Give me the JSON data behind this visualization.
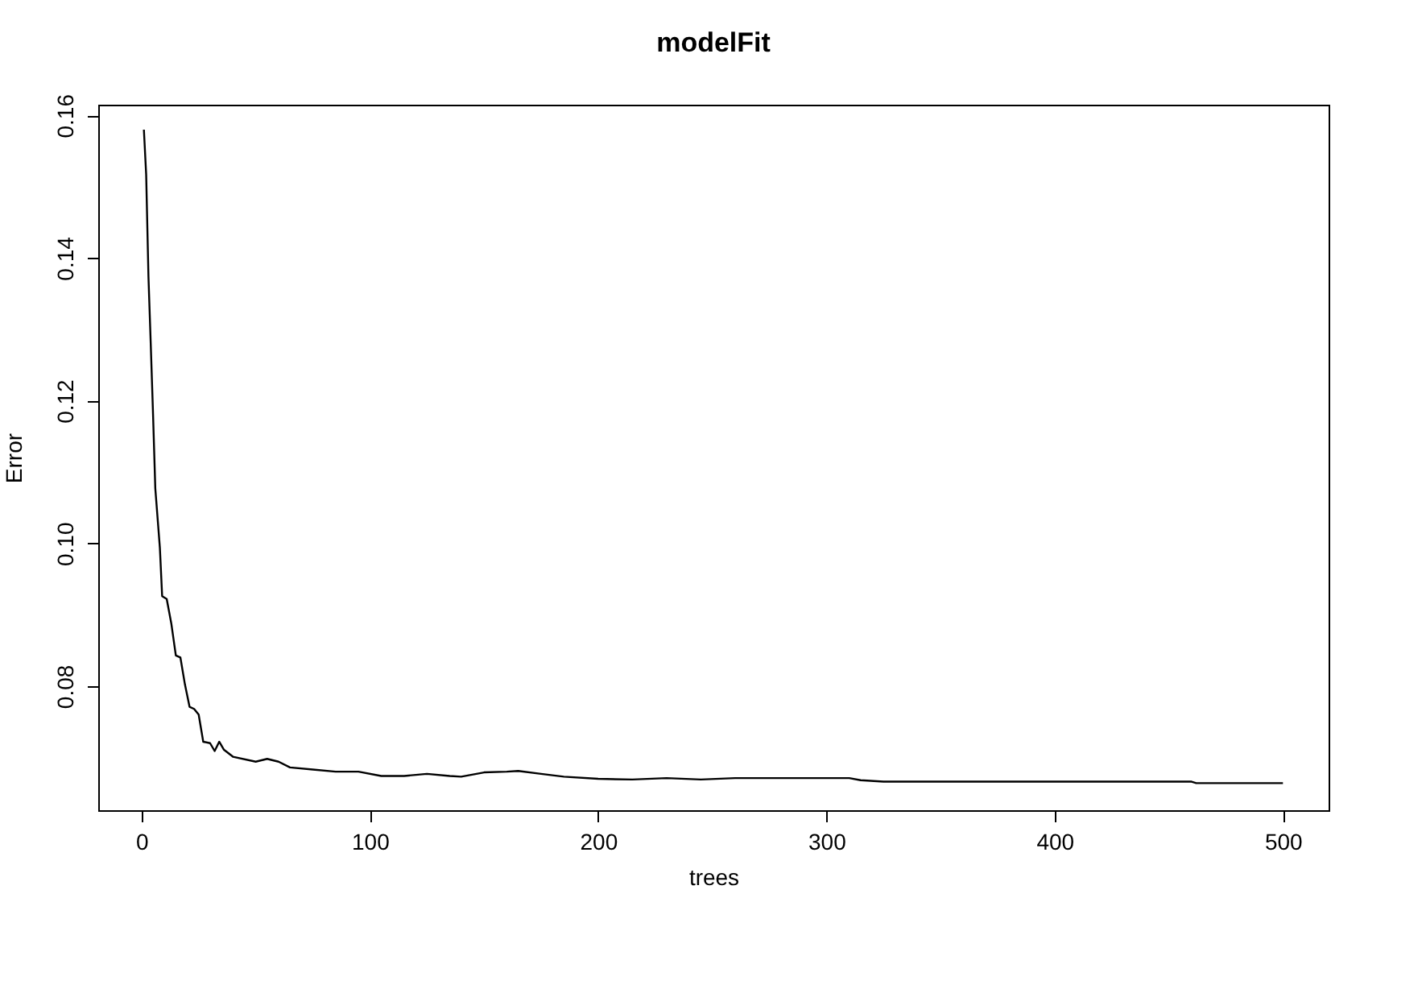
{
  "chart_data": {
    "type": "line",
    "title": "modelFit",
    "xlabel": "trees",
    "ylabel": "Error",
    "x": [
      1,
      2,
      3,
      4,
      5,
      6,
      8,
      9,
      11,
      13,
      15,
      17,
      19,
      21,
      23,
      25,
      27,
      30,
      32,
      34,
      36,
      40,
      50,
      55,
      60,
      65,
      75,
      85,
      95,
      105,
      115,
      125,
      135,
      140,
      150,
      160,
      165,
      175,
      185,
      200,
      215,
      230,
      245,
      260,
      280,
      300,
      310,
      315,
      325,
      400,
      460,
      462,
      500
    ],
    "series": [
      {
        "color": "#000000",
        "values": [
          0.158,
          0.1517,
          0.1374,
          0.128,
          0.1182,
          0.1077,
          0.0994,
          0.0926,
          0.0922,
          0.0888,
          0.0843,
          0.084,
          0.0802,
          0.0771,
          0.0768,
          0.076,
          0.0722,
          0.072,
          0.0709,
          0.0722,
          0.0711,
          0.0701,
          0.0694,
          0.0698,
          0.0694,
          0.0686,
          0.0683,
          0.068,
          0.068,
          0.0674,
          0.0674,
          0.0677,
          0.0674,
          0.0673,
          0.0679,
          0.068,
          0.0681,
          0.0677,
          0.0673,
          0.067,
          0.0669,
          0.0671,
          0.0669,
          0.0671,
          0.0671,
          0.0671,
          0.0671,
          0.0668,
          0.0666,
          0.0666,
          0.0666,
          0.0664,
          0.0664
        ]
      }
    ],
    "xlim": [
      -19,
      520
    ],
    "ylim": [
      0.0626,
      0.1615
    ],
    "xticks": [
      0,
      100,
      200,
      300,
      400,
      500
    ],
    "yticks": [
      0.08,
      {
        "value": 0.1,
        "label": "0.10"
      },
      0.12,
      0.14,
      0.16
    ],
    "grid": false,
    "marker": "none",
    "line_style": "solid"
  }
}
